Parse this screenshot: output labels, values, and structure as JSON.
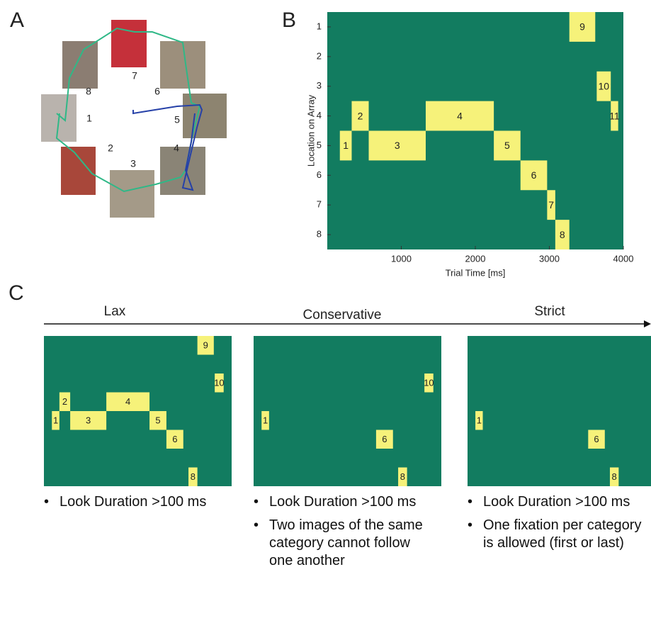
{
  "panel_a": {
    "letter": "A",
    "image_labels": [
      "1",
      "2",
      "3",
      "4",
      "5",
      "6",
      "7",
      "8"
    ]
  },
  "chart_data": {
    "type": "timeline",
    "letter": "B",
    "ylabel": "Location on Array",
    "xlabel": "Trial Time [ms]",
    "xlim": [
      0,
      4000
    ],
    "xticks": [
      1000,
      2000,
      3000,
      4000
    ],
    "ylim": [
      0.5,
      8.5
    ],
    "yticks": [
      1,
      2,
      3,
      4,
      5,
      6,
      7,
      8
    ],
    "y_inverted": true,
    "background": "#127c60",
    "color": "#f6f27a",
    "fixations": [
      {
        "label": "1",
        "start": 170,
        "end": 330,
        "location": 5
      },
      {
        "label": "2",
        "start": 330,
        "end": 560,
        "location": 4
      },
      {
        "label": "3",
        "start": 560,
        "end": 1330,
        "location": 5
      },
      {
        "label": "4",
        "start": 1330,
        "end": 2250,
        "location": 4
      },
      {
        "label": "5",
        "start": 2250,
        "end": 2610,
        "location": 5
      },
      {
        "label": "6",
        "start": 2610,
        "end": 2970,
        "location": 6
      },
      {
        "label": "7",
        "start": 2970,
        "end": 3080,
        "location": 7
      },
      {
        "label": "8",
        "start": 3080,
        "end": 3270,
        "location": 8
      },
      {
        "label": "9",
        "start": 3270,
        "end": 3620,
        "location": 1
      },
      {
        "label": "10",
        "start": 3640,
        "end": 3830,
        "location": 3
      },
      {
        "label": "11",
        "start": 3830,
        "end": 3930,
        "location": 4
      }
    ]
  },
  "panel_c": {
    "letter": "C",
    "conditions": [
      {
        "title": "Lax",
        "shown": [
          "1",
          "2",
          "3",
          "4",
          "5",
          "6",
          "8",
          "9",
          "10"
        ],
        "bullets": [
          "Look Duration >100 ms"
        ]
      },
      {
        "title": "Conservative",
        "shown": [
          "1",
          "6",
          "8",
          "10"
        ],
        "bullets": [
          "Look Duration >100 ms",
          "Two images of the same category cannot follow one another"
        ]
      },
      {
        "title": "Strict",
        "shown": [
          "1",
          "6",
          "8"
        ],
        "bullets": [
          "Look Duration >100 ms",
          "One fixation per category is allowed (first or last)"
        ]
      }
    ]
  }
}
